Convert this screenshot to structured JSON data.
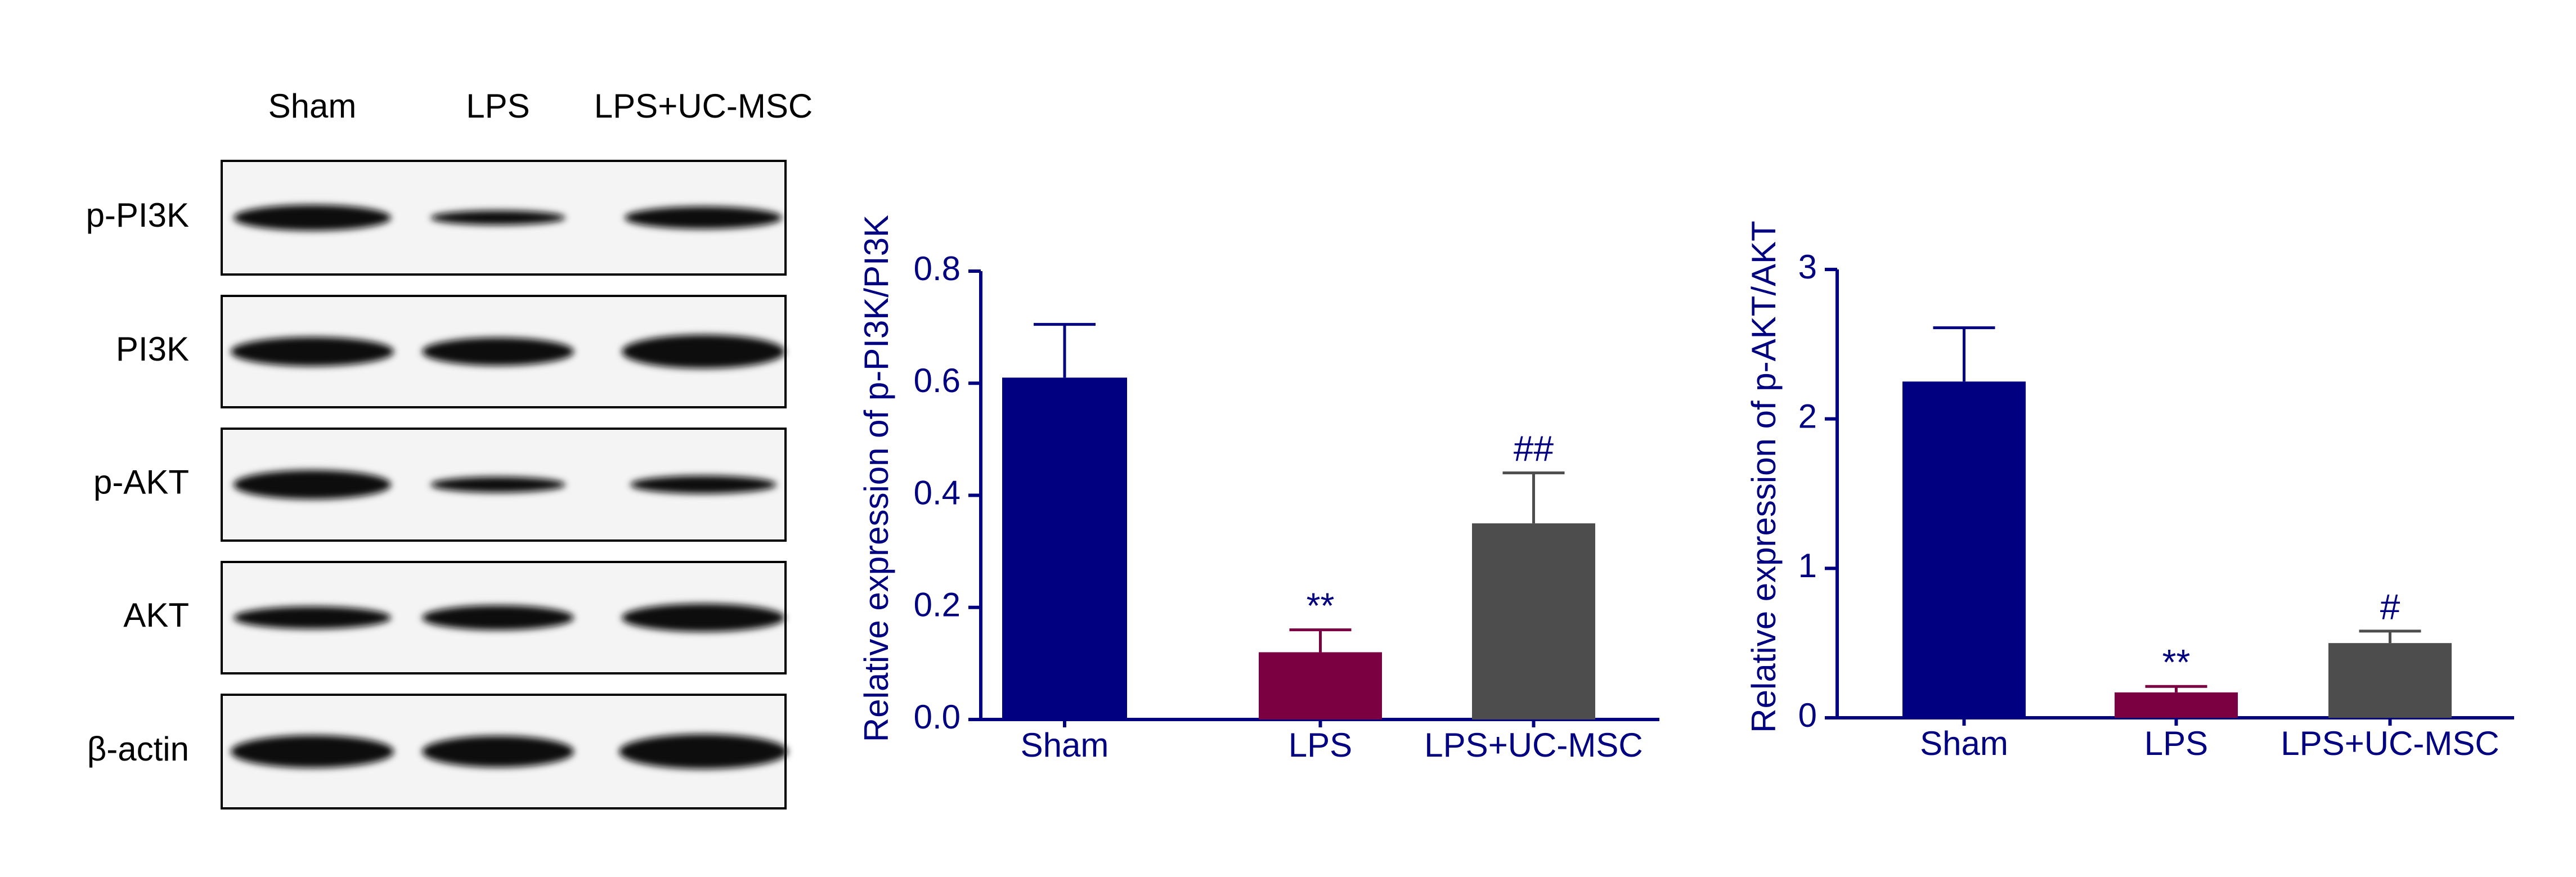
{
  "blot": {
    "lanes": [
      "Sham",
      "LPS",
      "LPS+UC-MSC"
    ],
    "rows": [
      "p-PI3K",
      "PI3K",
      "p-AKT",
      "AKT",
      "β-actin"
    ]
  },
  "chart_data": [
    {
      "type": "bar",
      "ylabel": "Relative expression of p-PI3K/PI3K",
      "categories": [
        "Sham",
        "LPS",
        "LPS+UC-MSC"
      ],
      "values": [
        0.61,
        0.12,
        0.35
      ],
      "errors": [
        0.095,
        0.04,
        0.09
      ],
      "annotations": [
        null,
        "**",
        "##"
      ],
      "colors": [
        "#000080",
        "#7b0041",
        "#4d4d4d"
      ],
      "ylim": [
        0,
        0.8
      ],
      "yticks": [
        {
          "value": 0,
          "label": "0.0"
        },
        0.2,
        0.4,
        0.6,
        0.8
      ]
    },
    {
      "type": "bar",
      "ylabel": "Relative expression of p-AKT/AKT",
      "categories": [
        "Sham",
        "LPS",
        "LPS+UC-MSC"
      ],
      "values": [
        2.25,
        0.17,
        0.5
      ],
      "errors": [
        0.36,
        0.04,
        0.08
      ],
      "annotations": [
        null,
        "**",
        "#"
      ],
      "colors": [
        "#000080",
        "#7b0041",
        "#4d4d4d"
      ],
      "ylim": [
        0,
        3
      ],
      "yticks": [
        0,
        1,
        2,
        3
      ]
    }
  ]
}
